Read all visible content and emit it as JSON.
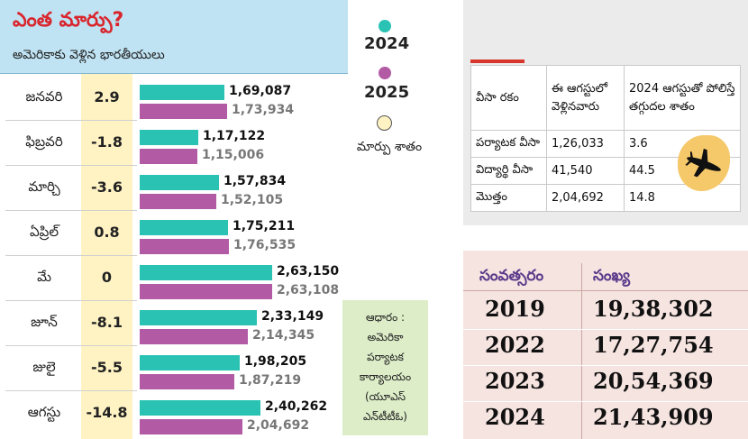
{
  "header": {
    "title": "ఎంత మార్పు?",
    "subtitle": "అమెరికాకు వెళ్లిన భారతీయులు"
  },
  "legend": {
    "year_a": "2024",
    "year_b": "2025",
    "change_label": "మార్పు శాతం",
    "color_a": "#29c2b3",
    "color_b": "#b35aa5",
    "change_color": "#fff3c4"
  },
  "source": "ఆధారం : అమెరికా పర్యాటక కార్యాలయం (యూఎస్ ఎన్‌టీటీఓ)",
  "chart_data": {
    "type": "bar",
    "title": "ఎంత మార్పు?",
    "subtitle": "అమెరికాకు వెళ్లిన భారతీయులు",
    "categories": [
      "జనవరి",
      "ఫిబ్రవరి",
      "మార్చి",
      "ఏప్రిల్",
      "మే",
      "జూన్",
      "జులై",
      "ఆగస్టు"
    ],
    "series": [
      {
        "name": "2024",
        "values": [
          169087,
          117122,
          157834,
          175211,
          263150,
          233149,
          198205,
          240262
        ],
        "labels": [
          "1,69,087",
          "1,17,122",
          "1,57,834",
          "1,75,211",
          "2,63,150",
          "2,33,149",
          "1,98,205",
          "2,40,262"
        ]
      },
      {
        "name": "2025",
        "values": [
          173934,
          115006,
          152105,
          176535,
          263108,
          214345,
          187219,
          204692
        ],
        "labels": [
          "1,73,934",
          "1,15,006",
          "1,52,105",
          "1,76,535",
          "2,63,108",
          "2,14,345",
          "1,87,219",
          "2,04,692"
        ]
      }
    ],
    "change_percent": [
      "2.9",
      "-1.8",
      "-3.6",
      "0.8",
      "0",
      "-8.1",
      "-5.5",
      "-14.8"
    ],
    "orientation": "horizontal",
    "legend_position": "right",
    "grid": false
  },
  "visa_table": {
    "headers": [
      "వీసా రకం",
      "ఈ ఆగస్టులో వెళ్లినవారు",
      "2024 ఆగస్టుతో పోలిస్తే తగ్గుదల శాతం"
    ],
    "rows": [
      [
        "పర్యాటక వీసా",
        "1,26,033",
        "3.6"
      ],
      [
        "విద్యార్థి వీసా",
        "41,540",
        "44.5"
      ],
      [
        "మొత్తం",
        "2,04,692",
        "14.8"
      ]
    ]
  },
  "year_table": {
    "headers": [
      "సంవత్సరం",
      "సంఖ్య"
    ],
    "rows": [
      [
        "2019",
        "19,38,302"
      ],
      [
        "2022",
        "17,27,754"
      ],
      [
        "2023",
        "20,54,369"
      ],
      [
        "2024",
        "21,43,909"
      ]
    ]
  }
}
